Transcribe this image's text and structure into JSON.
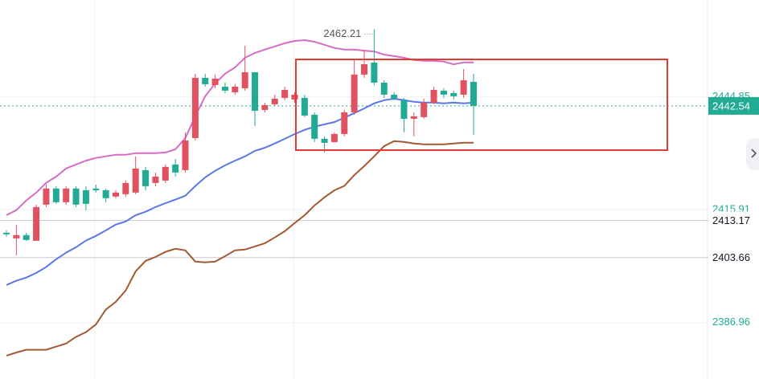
{
  "chart_data": {
    "type": "candlestick",
    "ohlc": {
      "open": [
        2410.01,
        2408.57,
        2409.4,
        2407.95,
        2417.22,
        2421.34,
        2417.84,
        2421.34,
        2420.92,
        2421.34,
        2420.92,
        2419.28,
        2419.89,
        2420.31,
        2426.07,
        2422.78,
        2423.39,
        2427.51,
        2426.07,
        2434.3,
        2449.74,
        2447.89,
        2447.48,
        2446.04,
        2447.07,
        2451.18,
        2441.51,
        2442.95,
        2444.6,
        2444.18,
        2444.6,
        2440.27,
        2434.1,
        2433.27,
        2435.33,
        2440.89,
        2450.57,
        2453.65,
        2448.51,
        2445.42,
        2443.98,
        2439.24,
        2439.66,
        2443.36,
        2446.45,
        2445.83,
        2445.42,
        2448.71
      ],
      "high": [
        2410.63,
        2412.07,
        2410.01,
        2417.22,
        2422.36,
        2421.95,
        2421.95,
        2421.95,
        2421.95,
        2422.36,
        2421.34,
        2420.92,
        2423.39,
        2429.57,
        2426.89,
        2425.45,
        2427.51,
        2428.95,
        2435.74,
        2450.77,
        2450.77,
        2450.57,
        2448.51,
        2448.1,
        2457.98,
        2451.18,
        2443.36,
        2445.42,
        2447.48,
        2446.04,
        2445.42,
        2440.89,
        2434.72,
        2435.74,
        2441.51,
        2454.27,
        2456.95,
        2462.21,
        2449.12,
        2446.04,
        2444.6,
        2440.89,
        2444.39,
        2447.48,
        2447.07,
        2446.45,
        2452.01,
        2450.77
      ],
      "low": [
        2408.98,
        2404.25,
        2407.95,
        2407.95,
        2416.6,
        2417.42,
        2417.22,
        2416.6,
        2415.78,
        2420.31,
        2417.84,
        2418.87,
        2419.28,
        2419.89,
        2420.92,
        2421.95,
        2422.78,
        2424.42,
        2425.45,
        2433.69,
        2447.48,
        2447.07,
        2445.83,
        2445.42,
        2446.45,
        2437.39,
        2440.89,
        2442.54,
        2443.98,
        2443.36,
        2439.66,
        2433.27,
        2430.6,
        2433.07,
        2434.72,
        2440.27,
        2449.74,
        2447.89,
        2444.6,
        2443.98,
        2435.74,
        2434.72,
        2439.24,
        2442.95,
        2444.6,
        2444.18,
        2444.6,
        2435.13
      ],
      "close": [
        2409.6,
        2409.4,
        2408.16,
        2416.6,
        2421.34,
        2417.84,
        2421.34,
        2417.22,
        2417.42,
        2420.92,
        2418.87,
        2420.31,
        2422.78,
        2426.48,
        2421.95,
        2424.42,
        2426.89,
        2425.45,
        2433.69,
        2449.74,
        2448.1,
        2449.54,
        2446.45,
        2447.48,
        2451.18,
        2441.3,
        2442.74,
        2444.39,
        2446.65,
        2445.42,
        2440.07,
        2434.1,
        2433.07,
        2435.33,
        2440.89,
        2450.57,
        2453.24,
        2448.51,
        2445.42,
        2444.39,
        2439.24,
        2439.86,
        2443.36,
        2446.65,
        2445.42,
        2445.01,
        2449.12,
        2442.54
      ]
    },
    "up_color": "#e0525f",
    "down_color": "#22ab94",
    "series": [
      {
        "color": "#d56cc6",
        "values": [
          2414.5,
          2415.8,
          2418.3,
          2420.3,
          2422.8,
          2424.4,
          2426.5,
          2427.5,
          2428.5,
          2429.2,
          2429.6,
          2430.0,
          2430.0,
          2430.4,
          2430.4,
          2430.4,
          2430.6,
          2431.4,
          2434.3,
          2439.9,
          2445.0,
          2448.3,
          2450.8,
          2452.4,
          2454.9,
          2456.1,
          2457.0,
          2457.8,
          2458.6,
          2459.2,
          2459.4,
          2459.0,
          2458.2,
          2457.4,
          2457.0,
          2457.0,
          2456.7,
          2456.5,
          2455.7,
          2455.3,
          2454.9,
          2454.3,
          2454.1,
          2454.1,
          2453.9,
          2453.2,
          2453.7,
          2453.7
        ]
      },
      {
        "color": "#5b77e6",
        "values": [
          2396.6,
          2397.7,
          2398.5,
          2399.7,
          2401.2,
          2403.2,
          2404.9,
          2406.3,
          2408.0,
          2409.2,
          2410.6,
          2412.1,
          2412.9,
          2414.5,
          2415.4,
          2416.6,
          2417.6,
          2418.5,
          2419.5,
          2422.0,
          2424.2,
          2425.9,
          2427.3,
          2428.5,
          2429.6,
          2431.0,
          2431.8,
          2432.9,
          2434.1,
          2435.3,
          2436.4,
          2437.2,
          2437.8,
          2438.4,
          2439.5,
          2440.7,
          2441.9,
          2443.2,
          2444.0,
          2444.4,
          2444.0,
          2443.6,
          2443.4,
          2443.4,
          2443.2,
          2443.4,
          2443.2,
          2443.4
        ]
      },
      {
        "color": "#a35a30",
        "values": [
          2378.5,
          2379.3,
          2380.0,
          2380.0,
          2380.0,
          2380.8,
          2381.6,
          2383.3,
          2384.5,
          2386.5,
          2390.3,
          2392.3,
          2395.2,
          2400.1,
          2402.8,
          2403.8,
          2405.1,
          2405.9,
          2405.5,
          2402.6,
          2402.4,
          2402.6,
          2404.0,
          2405.5,
          2405.7,
          2406.5,
          2407.3,
          2408.8,
          2410.4,
          2412.5,
          2414.5,
          2417.0,
          2419.1,
          2420.9,
          2422.0,
          2424.8,
          2427.1,
          2429.6,
          2432.2,
          2433.5,
          2433.3,
          2432.9,
          2432.7,
          2432.7,
          2432.7,
          2432.9,
          2433.1,
          2433.1
        ]
      }
    ],
    "ylim": [
      2372.5,
      2469.7
    ],
    "yticks": [
      2386.96,
      2415.91,
      2444.85
    ],
    "tick_color": "#22ab94",
    "grid": true,
    "price_lines": [
      {
        "value": 2442.54,
        "color": "#22ab94"
      },
      {
        "value": 2413.17,
        "color": "#c9ccd4"
      },
      {
        "value": 2403.66,
        "color": "#c9ccd4"
      }
    ],
    "high_label": 2462.21
  }
}
